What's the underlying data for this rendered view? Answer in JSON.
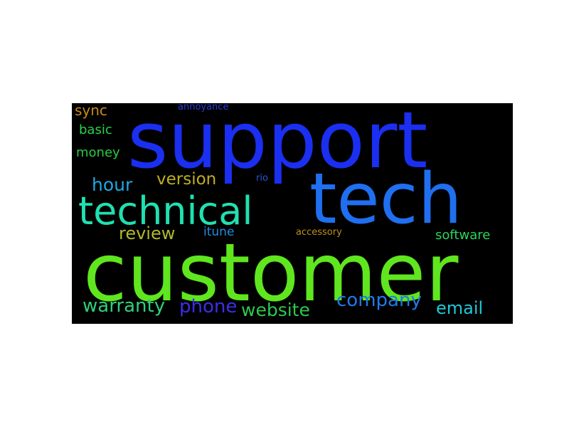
{
  "background_color": "#000000",
  "words": [
    {
      "text": "support",
      "color": "#1a2ff0"
    },
    {
      "text": "customer",
      "color": "#5fe61e"
    },
    {
      "text": "tech",
      "color": "#1f6ff0"
    },
    {
      "text": "technical",
      "color": "#20e0b0"
    },
    {
      "text": "warranty",
      "color": "#2fd07a"
    },
    {
      "text": "phone",
      "color": "#3c2ee8"
    },
    {
      "text": "website",
      "color": "#2ec84e"
    },
    {
      "text": "company",
      "color": "#1f7ae8"
    },
    {
      "text": "email",
      "color": "#20c8d8"
    },
    {
      "text": "review",
      "color": "#b0b82a"
    },
    {
      "text": "hour",
      "color": "#1ea8e0"
    },
    {
      "text": "version",
      "color": "#c0b020"
    },
    {
      "text": "software",
      "color": "#2ad45c"
    },
    {
      "text": "itune",
      "color": "#1e8ee0"
    },
    {
      "text": "money",
      "color": "#28cc42"
    },
    {
      "text": "basic",
      "color": "#26d44c"
    },
    {
      "text": "sync",
      "color": "#c88a18"
    },
    {
      "text": "annoyance",
      "color": "#2a3ad6"
    },
    {
      "text": "rio",
      "color": "#2856d8"
    },
    {
      "text": "accessory",
      "color": "#c09018"
    }
  ]
}
